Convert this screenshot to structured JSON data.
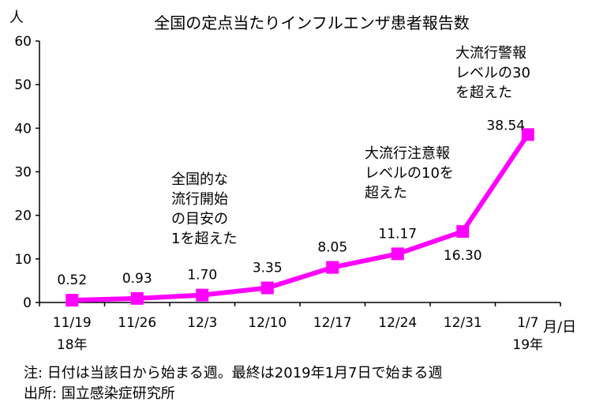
{
  "chart_data": {
    "type": "line",
    "title": "全国の定点当たりインフルエンザ患者報告数",
    "ylabel": "人",
    "xlabel": "月/日",
    "ylim": [
      0,
      60
    ],
    "yticks": [
      0,
      10,
      20,
      30,
      40,
      50,
      60
    ],
    "categories": [
      "11/19",
      "11/26",
      "12/3",
      "12/10",
      "12/17",
      "12/24",
      "12/31",
      "1/7"
    ],
    "year_labels": [
      {
        "category": "11/19",
        "text": "18年"
      },
      {
        "category": "1/7",
        "text": "19年"
      }
    ],
    "series": [
      {
        "values": [
          0.52,
          0.93,
          1.7,
          3.35,
          8.05,
          11.17,
          16.3,
          38.54
        ],
        "labels": [
          "0.52",
          "0.93",
          "1.70",
          "3.35",
          "8.05",
          "11.17",
          "16.30",
          "38.54"
        ]
      }
    ],
    "annotations": [
      {
        "lines": [
          "全国的な",
          "流行開始",
          "の目安の",
          "1を超えた"
        ]
      },
      {
        "lines": [
          "大流行注意報",
          "レベルの10を",
          "超えた"
        ]
      },
      {
        "lines": [
          "大流行警報",
          "レベルの30",
          "を超えた"
        ]
      }
    ],
    "grid": false,
    "legend": "none",
    "colors": {
      "series": "#ff00ff",
      "axis": "#000000"
    }
  },
  "footnotes": {
    "note": "注: 日付は当該日から始まる週。最終は2019年1月7日で始まる週",
    "source": "出所: 国立感染症研究所"
  }
}
